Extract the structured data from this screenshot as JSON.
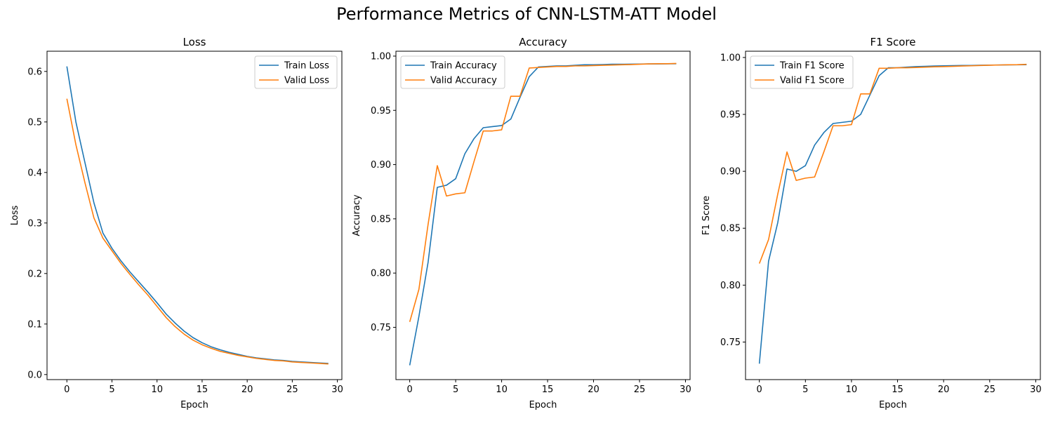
{
  "figure": {
    "suptitle": "Performance Metrics of CNN-LSTM-ATT Model"
  },
  "colors": {
    "train": "#1f77b4",
    "valid": "#ff7f0e"
  },
  "chart_data": [
    {
      "type": "line",
      "title": "Loss",
      "xlabel": "Epoch",
      "ylabel": "Loss",
      "xlim": [
        -2.2,
        30.5
      ],
      "ylim": [
        -0.01,
        0.64
      ],
      "xticks": [
        0,
        5,
        10,
        15,
        20,
        25,
        30
      ],
      "yticks": [
        0.0,
        0.1,
        0.2,
        0.3,
        0.4,
        0.5,
        0.6
      ],
      "ytick_labels": [
        "0.0",
        "0.1",
        "0.2",
        "0.3",
        "0.4",
        "0.5",
        "0.6"
      ],
      "legend": "top-right",
      "x": [
        0,
        1,
        2,
        3,
        4,
        5,
        6,
        7,
        8,
        9,
        10,
        11,
        12,
        13,
        14,
        15,
        16,
        17,
        18,
        19,
        20,
        21,
        22,
        23,
        24,
        25,
        26,
        27,
        28,
        29
      ],
      "series": [
        {
          "name": "Train Loss",
          "values": [
            0.61,
            0.5,
            0.42,
            0.34,
            0.28,
            0.25,
            0.225,
            0.203,
            0.183,
            0.163,
            0.142,
            0.12,
            0.102,
            0.086,
            0.073,
            0.063,
            0.055,
            0.049,
            0.044,
            0.04,
            0.036,
            0.033,
            0.031,
            0.029,
            0.028,
            0.026,
            0.025,
            0.024,
            0.023,
            0.022
          ]
        },
        {
          "name": "Valid Loss",
          "values": [
            0.546,
            0.455,
            0.38,
            0.31,
            0.27,
            0.245,
            0.22,
            0.198,
            0.177,
            0.157,
            0.135,
            0.113,
            0.095,
            0.08,
            0.068,
            0.059,
            0.052,
            0.046,
            0.042,
            0.038,
            0.035,
            0.032,
            0.03,
            0.028,
            0.027,
            0.025,
            0.024,
            0.023,
            0.022,
            0.021
          ]
        }
      ]
    },
    {
      "type": "line",
      "title": "Accuracy",
      "xlabel": "Epoch",
      "ylabel": "Accuracy",
      "xlim": [
        -1.5,
        30.5
      ],
      "ylim": [
        0.7018,
        1.0045
      ],
      "xticks": [
        0,
        5,
        10,
        15,
        20,
        25,
        30
      ],
      "yticks": [
        0.75,
        0.8,
        0.85,
        0.9,
        0.95,
        1.0
      ],
      "ytick_labels": [
        "0.75",
        "0.80",
        "0.85",
        "0.90",
        "0.95",
        "1.00"
      ],
      "legend": "top-left",
      "x": [
        0,
        1,
        2,
        3,
        4,
        5,
        6,
        7,
        8,
        9,
        10,
        11,
        12,
        13,
        14,
        15,
        16,
        17,
        18,
        19,
        20,
        21,
        22,
        23,
        24,
        25,
        26,
        27,
        28,
        29
      ],
      "series": [
        {
          "name": "Train Accuracy",
          "values": [
            0.715,
            0.76,
            0.81,
            0.879,
            0.881,
            0.887,
            0.91,
            0.924,
            0.934,
            0.935,
            0.936,
            0.942,
            0.962,
            0.981,
            0.99,
            0.9905,
            0.991,
            0.991,
            0.9915,
            0.992,
            0.992,
            0.9922,
            0.9925,
            0.9925,
            0.9926,
            0.9927,
            0.9928,
            0.9928,
            0.9929,
            0.993
          ]
        },
        {
          "name": "Valid Accuracy",
          "values": [
            0.755,
            0.785,
            0.845,
            0.899,
            0.871,
            0.873,
            0.874,
            0.903,
            0.931,
            0.931,
            0.932,
            0.963,
            0.963,
            0.989,
            0.9895,
            0.99,
            0.9905,
            0.9905,
            0.991,
            0.991,
            0.9913,
            0.9915,
            0.9918,
            0.992,
            0.9922,
            0.9925,
            0.9928,
            0.993,
            0.993,
            0.9932
          ]
        }
      ]
    },
    {
      "type": "line",
      "title": "F1 Score",
      "xlabel": "Epoch",
      "ylabel": "F1 Score",
      "xlim": [
        -1.5,
        30.5
      ],
      "ylim": [
        0.717,
        1.0055
      ],
      "xticks": [
        0,
        5,
        10,
        15,
        20,
        25,
        30
      ],
      "yticks": [
        0.75,
        0.8,
        0.85,
        0.9,
        0.95,
        1.0
      ],
      "ytick_labels": [
        "0.75",
        "0.80",
        "0.85",
        "0.90",
        "0.95",
        "1.00"
      ],
      "legend": "top-left",
      "x": [
        0,
        1,
        2,
        3,
        4,
        5,
        6,
        7,
        8,
        9,
        10,
        11,
        12,
        13,
        14,
        15,
        16,
        17,
        18,
        19,
        20,
        21,
        22,
        23,
        24,
        25,
        26,
        27,
        28,
        29
      ],
      "series": [
        {
          "name": "Train F1 Score",
          "values": [
            0.731,
            0.821,
            0.855,
            0.902,
            0.9,
            0.905,
            0.923,
            0.934,
            0.942,
            0.943,
            0.944,
            0.95,
            0.967,
            0.984,
            0.991,
            0.991,
            0.9915,
            0.992,
            0.9922,
            0.9925,
            0.9927,
            0.9928,
            0.993,
            0.993,
            0.9932,
            0.9933,
            0.9934,
            0.9935,
            0.9936,
            0.9937
          ]
        },
        {
          "name": "Valid F1 Score",
          "values": [
            0.819,
            0.84,
            0.88,
            0.917,
            0.892,
            0.894,
            0.895,
            0.917,
            0.94,
            0.94,
            0.941,
            0.968,
            0.968,
            0.9905,
            0.9905,
            0.991,
            0.991,
            0.9912,
            0.9915,
            0.9918,
            0.992,
            0.9922,
            0.9925,
            0.9927,
            0.993,
            0.9932,
            0.9934,
            0.9936,
            0.9937,
            0.994
          ]
        }
      ]
    }
  ]
}
